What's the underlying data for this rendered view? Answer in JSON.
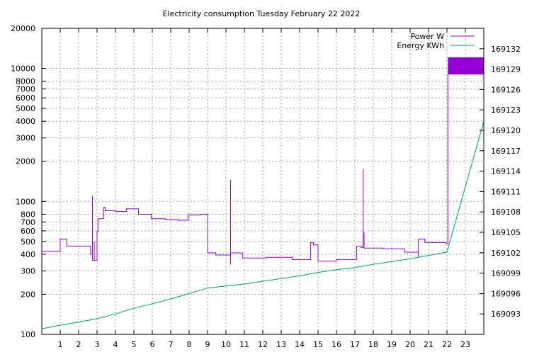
{
  "chart_data": {
    "type": "line",
    "title": "Electricity consumption Tuesday February 22 2022",
    "xlabel": "",
    "ylabel": "",
    "xlim": [
      0,
      24
    ],
    "x_ticks": [
      "1",
      "2",
      "3",
      "4",
      "5",
      "6",
      "7",
      "8",
      "9",
      "10",
      "11",
      "12",
      "13",
      "14",
      "15",
      "16",
      "17",
      "18",
      "19",
      "20",
      "21",
      "22",
      "23"
    ],
    "y_left": {
      "scale": "log",
      "ylim": [
        100,
        20000
      ],
      "ticks": [
        100,
        200,
        300,
        400,
        500,
        600,
        700,
        800,
        1000,
        2000,
        3000,
        4000,
        5000,
        6000,
        7000,
        8000,
        10000,
        20000
      ]
    },
    "y_right": {
      "scale": "linear",
      "ylim": [
        169090,
        169135
      ],
      "ticks": [
        169093,
        169096,
        169099,
        169102,
        169105,
        169108,
        169111,
        169114,
        169117,
        169120,
        169123,
        169126,
        169129,
        169132
      ]
    },
    "grid": true,
    "legend_position": "top-right",
    "series": [
      {
        "name": "Power W",
        "axis": "left",
        "color": "#9400d3",
        "points": [
          [
            0,
            500
          ],
          [
            0,
            420
          ],
          [
            1.0,
            420
          ],
          [
            1.0,
            520
          ],
          [
            1.35,
            520
          ],
          [
            1.35,
            460
          ],
          [
            2.65,
            460
          ],
          [
            2.65,
            400
          ],
          [
            2.75,
            400
          ],
          [
            2.75,
            1100
          ],
          [
            2.75,
            360
          ],
          [
            2.85,
            360
          ],
          [
            2.85,
            500
          ],
          [
            2.85,
            360
          ],
          [
            3.0,
            360
          ],
          [
            3.0,
            590
          ],
          [
            3.05,
            590
          ],
          [
            3.05,
            740
          ],
          [
            3.35,
            740
          ],
          [
            3.35,
            900
          ],
          [
            3.45,
            900
          ],
          [
            3.45,
            850
          ],
          [
            4.0,
            850
          ],
          [
            4.0,
            840
          ],
          [
            4.6,
            840
          ],
          [
            4.6,
            880
          ],
          [
            5.25,
            880
          ],
          [
            5.25,
            800
          ],
          [
            5.95,
            800
          ],
          [
            5.95,
            740
          ],
          [
            6.7,
            740
          ],
          [
            6.7,
            730
          ],
          [
            7.4,
            730
          ],
          [
            7.4,
            720
          ],
          [
            7.95,
            720
          ],
          [
            7.95,
            790
          ],
          [
            8.65,
            790
          ],
          [
            8.65,
            800
          ],
          [
            9.0,
            800
          ],
          [
            9.0,
            410
          ],
          [
            9.45,
            410
          ],
          [
            9.45,
            395
          ],
          [
            10.25,
            395
          ],
          [
            10.25,
            1450
          ],
          [
            10.25,
            335
          ],
          [
            10.25,
            410
          ],
          [
            10.9,
            410
          ],
          [
            10.9,
            375
          ],
          [
            12.2,
            375
          ],
          [
            12.2,
            380
          ],
          [
            13.6,
            380
          ],
          [
            13.6,
            365
          ],
          [
            14.6,
            365
          ],
          [
            14.6,
            490
          ],
          [
            14.75,
            490
          ],
          [
            14.75,
            470
          ],
          [
            15.0,
            470
          ],
          [
            15.0,
            355
          ],
          [
            16.0,
            355
          ],
          [
            16.0,
            365
          ],
          [
            17.1,
            365
          ],
          [
            17.1,
            460
          ],
          [
            17.35,
            460
          ],
          [
            17.35,
            450
          ],
          [
            17.45,
            450
          ],
          [
            17.45,
            1750
          ],
          [
            17.45,
            580
          ],
          [
            17.5,
            580
          ],
          [
            17.5,
            445
          ],
          [
            18.5,
            445
          ],
          [
            18.5,
            440
          ],
          [
            19.7,
            440
          ],
          [
            19.7,
            415
          ],
          [
            20.45,
            415
          ],
          [
            20.45,
            380
          ],
          [
            20.45,
            520
          ],
          [
            20.8,
            520
          ],
          [
            20.8,
            490
          ],
          [
            21.95,
            490
          ],
          [
            21.95,
            480
          ],
          [
            22.05,
            480
          ],
          [
            22.05,
            9000
          ]
        ],
        "band": {
          "x": [
            22.05,
            24
          ],
          "y": [
            9000,
            12100
          ]
        }
      },
      {
        "name": "Energy KWh",
        "axis": "right",
        "color": "#009e73",
        "points": [
          [
            0,
            169090.8
          ],
          [
            1,
            169091.35
          ],
          [
            2,
            169091.8
          ],
          [
            3,
            169092.3
          ],
          [
            4,
            169093.0
          ],
          [
            5,
            169093.85
          ],
          [
            6,
            169094.5
          ],
          [
            7,
            169095.2
          ],
          [
            8,
            169096.0
          ],
          [
            9,
            169096.8
          ],
          [
            10,
            169097.1
          ],
          [
            11,
            169097.4
          ],
          [
            12,
            169097.8
          ],
          [
            13,
            169098.2
          ],
          [
            14,
            169098.6
          ],
          [
            15,
            169099.1
          ],
          [
            16,
            169099.5
          ],
          [
            17,
            169099.8
          ],
          [
            18,
            169100.3
          ],
          [
            19,
            169100.7
          ],
          [
            20,
            169101.1
          ],
          [
            21,
            169101.6
          ],
          [
            22,
            169102.1
          ],
          [
            24,
            169121.3
          ]
        ]
      }
    ]
  }
}
